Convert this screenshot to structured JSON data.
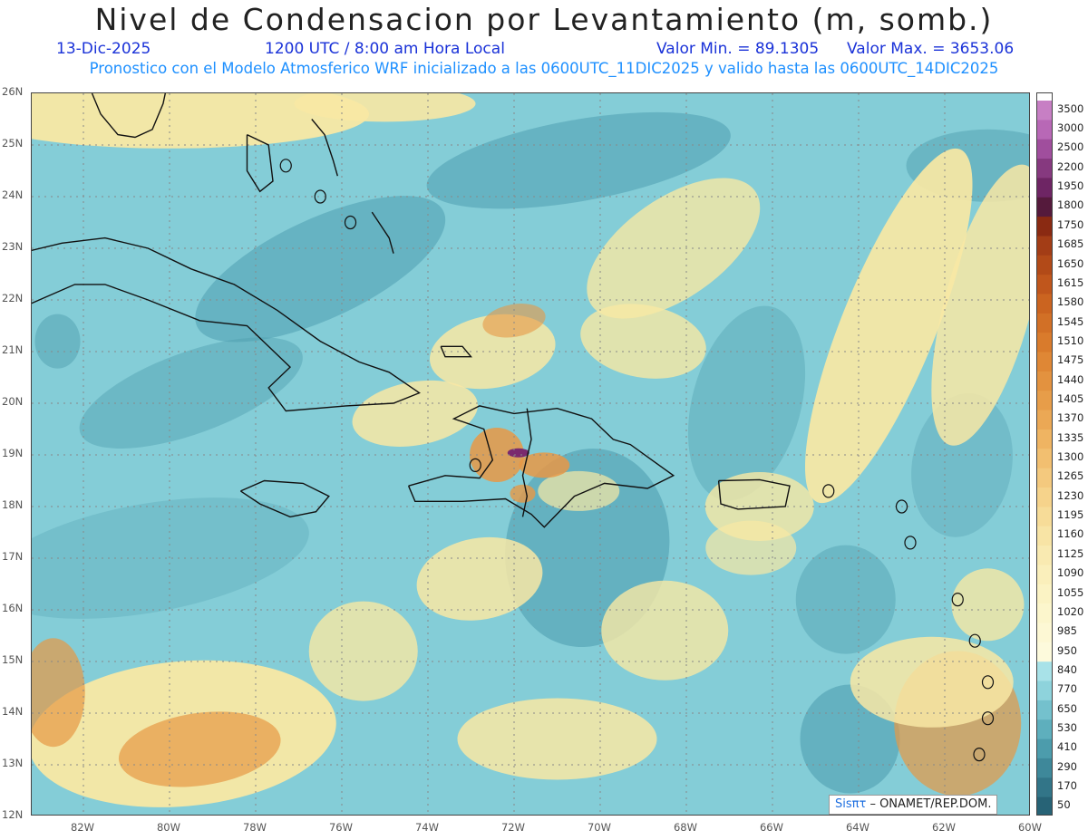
{
  "header": {
    "title": "Nivel de Condensacion por Levantamiento (m, somb.)",
    "date": "13-Dic-2025",
    "time": "1200 UTC / 8:00 am Hora Local",
    "min_label": "Valor Min. = 89.1305",
    "max_label": "Valor Max. = 3653.06",
    "model_line": "Pronostico con el Modelo Atmosferico WRF inicializado a las 0600UTC_11DIC2025 y valido hasta las  0600UTC_14DIC2025"
  },
  "axes": {
    "lat_labels": [
      "26N",
      "25N",
      "24N",
      "23N",
      "22N",
      "21N",
      "20N",
      "19N",
      "18N",
      "17N",
      "16N",
      "15N",
      "14N",
      "13N",
      "12N"
    ],
    "lon_labels": [
      "82W",
      "80W",
      "78W",
      "76W",
      "74W",
      "72W",
      "70W",
      "68W",
      "66W",
      "64W",
      "62W",
      "60W"
    ],
    "lat_range": [
      12,
      26
    ],
    "lon_range": [
      -83.2,
      -60
    ]
  },
  "colorbar": {
    "levels": [
      "3500",
      "3000",
      "2500",
      "2200",
      "1950",
      "1800",
      "1750",
      "1685",
      "1650",
      "1615",
      "1580",
      "1545",
      "1510",
      "1475",
      "1440",
      "1405",
      "1370",
      "1335",
      "1300",
      "1265",
      "1230",
      "1195",
      "1160",
      "1125",
      "1090",
      "1055",
      "1020",
      "985",
      "950",
      "840",
      "770",
      "650",
      "530",
      "410",
      "290",
      "170",
      "50"
    ],
    "colors": [
      "#c77fc4",
      "#b868b6",
      "#a04e9d",
      "#86397f",
      "#6e2564",
      "#551a3c",
      "#8a2a12",
      "#a33d16",
      "#b24a18",
      "#c0561c",
      "#cb6420",
      "#d27026",
      "#d97b2c",
      "#df8735",
      "#e3923f",
      "#e79d49",
      "#eba855",
      "#efb462",
      "#f2bf70",
      "#f4c97e",
      "#f6d38b",
      "#f7dc98",
      "#f8e4a5",
      "#f9eab1",
      "#faefbb",
      "#fbf3c4",
      "#fcf6cc",
      "#fdf8d4",
      "#fdfadc",
      "#a8e2e8",
      "#8ed3dc",
      "#74c1cd",
      "#5eafbd",
      "#4c9cac",
      "#3e889a",
      "#327588",
      "#276376"
    ]
  },
  "map_colors": {
    "sea_base": "#84cdd7",
    "dark_teal": "#4f9fb0",
    "yellow": "#f8e8a4",
    "orange": "#e79845",
    "purple": "#7a2a6e",
    "coast": "#111111",
    "grid": "#888888"
  },
  "credit": {
    "brand": "Sisπτ",
    "rest": "– ONAMET/REP.DOM."
  }
}
